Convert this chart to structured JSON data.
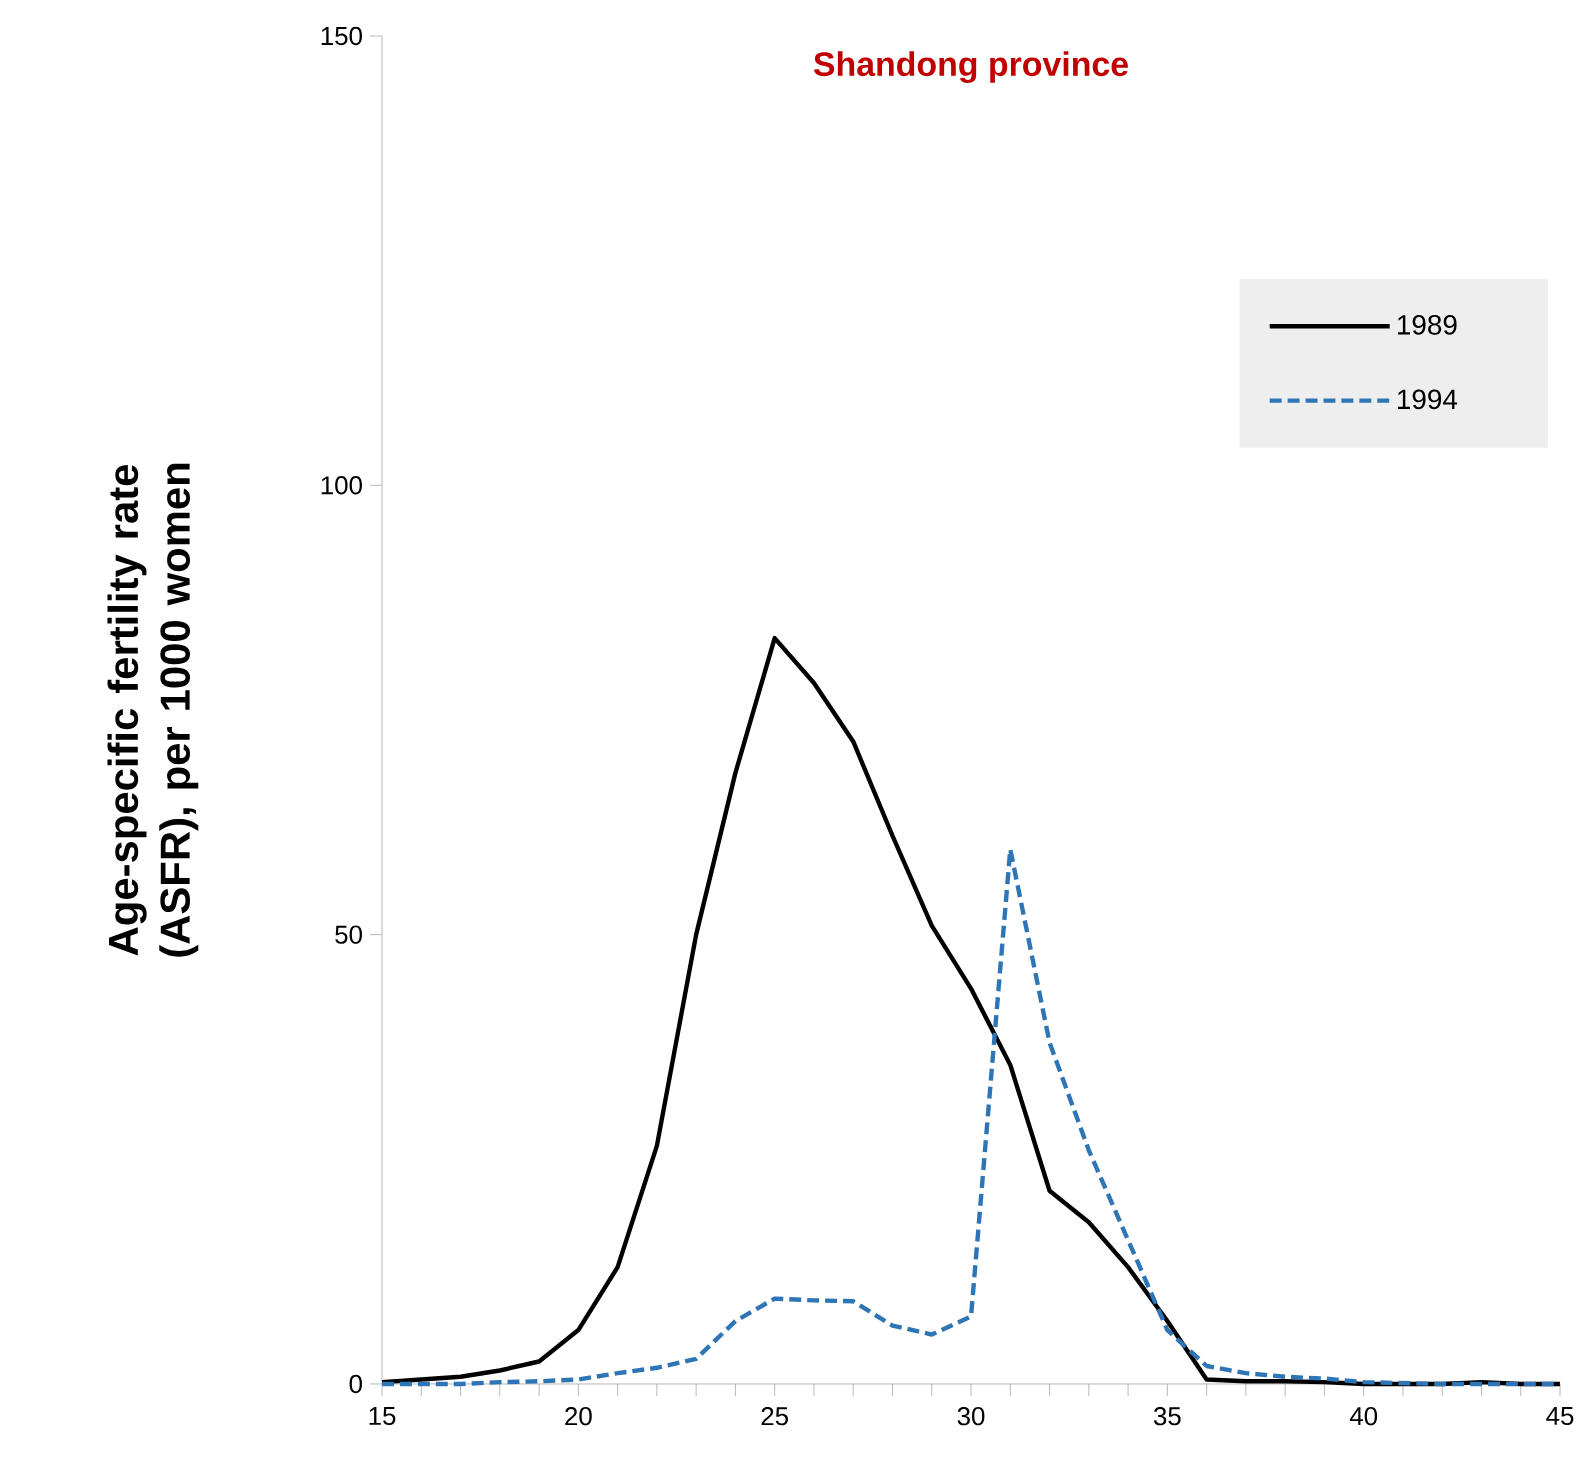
{
  "chart_data": {
    "type": "line",
    "title": "Shandong province",
    "ylabel": "Age-specific fertility rate (ASFR), per 1000 women",
    "x": [
      15,
      16,
      17,
      18,
      19,
      20,
      21,
      22,
      23,
      24,
      25,
      26,
      27,
      28,
      29,
      30,
      31,
      32,
      33,
      34,
      35,
      36,
      37,
      38,
      39,
      40,
      41,
      42,
      43,
      44,
      45
    ],
    "series": [
      {
        "name": "1989",
        "color": "#000000",
        "line_style": "solid",
        "values": [
          0.2,
          0.5,
          0.8,
          1.5,
          2.5,
          6,
          13,
          26.5,
          50,
          68,
          83,
          78,
          71.5,
          61,
          51,
          44,
          35.5,
          21.5,
          18,
          13,
          7,
          0.5,
          0.3,
          0.3,
          0.2,
          0,
          0,
          0,
          0.2,
          0,
          0
        ]
      },
      {
        "name": "1994",
        "color": "#2e75b6",
        "line_style": "dashed",
        "values": [
          0,
          0,
          0,
          0.2,
          0.3,
          0.5,
          1.2,
          1.8,
          2.8,
          7,
          9.5,
          9.3,
          9.2,
          6.5,
          5.5,
          7.5,
          59.5,
          38,
          26,
          16,
          6,
          2,
          1.2,
          0.8,
          0.6,
          0.2,
          0.1,
          0,
          0,
          0,
          0
        ]
      }
    ],
    "xlim": [
      15,
      45
    ],
    "ylim": [
      0,
      150
    ],
    "xticks": [
      15,
      20,
      25,
      30,
      35,
      40,
      45
    ],
    "yticks": [
      0,
      50,
      100,
      150
    ],
    "legend": "top right",
    "grid": false,
    "marker": "none"
  }
}
